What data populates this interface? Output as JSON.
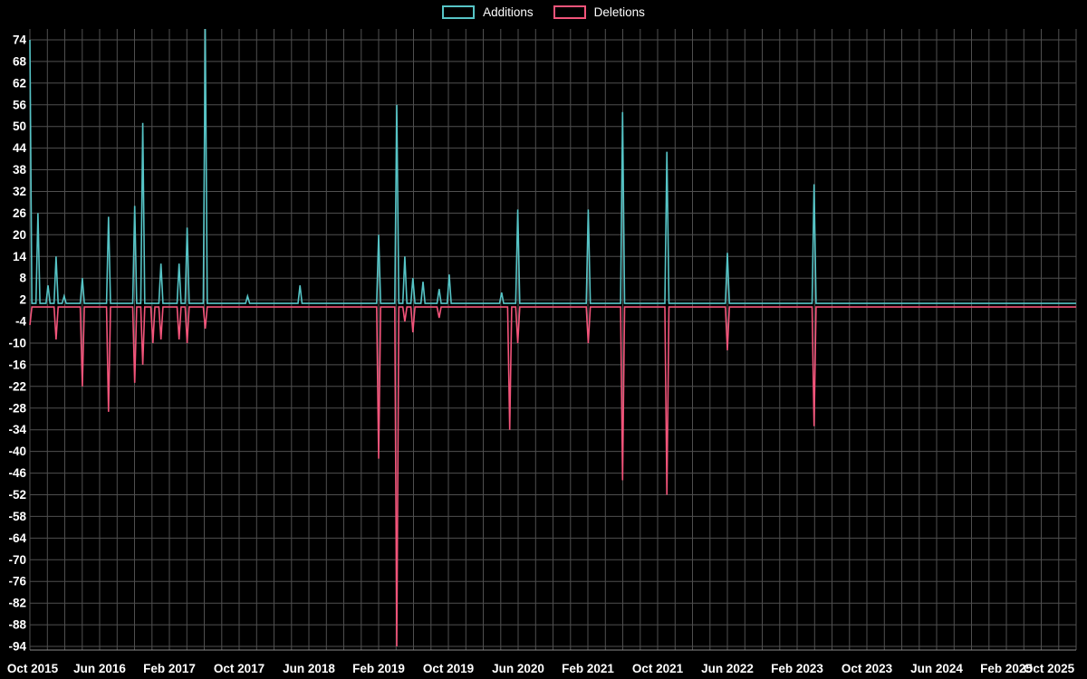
{
  "legend": {
    "items": [
      {
        "label": "Additions",
        "color": "#56c4c6"
      },
      {
        "label": "Deletions",
        "color": "#f2547a"
      }
    ]
  },
  "chart_data": {
    "type": "line",
    "title": "",
    "background": "#000000",
    "grid_color": "#4f4f4f",
    "axis_line_color": "#8a8a8a",
    "text_color": "#ffffff",
    "grid": true,
    "legend_position": "top-center",
    "n_months": 121,
    "x_start_label": "Oct 2015",
    "x_end_label": "Oct 2025",
    "x_tick_every_months": 8,
    "x_grid_every_months": 2,
    "x_tick_labels": [
      "Oct 2015",
      "Jun 2016",
      "Feb 2017",
      "Oct 2017",
      "Jun 2018",
      "Feb 2019",
      "Oct 2019",
      "Jun 2020",
      "Feb 2021",
      "Oct 2021",
      "Jun 2022",
      "Feb 2023",
      "Oct 2023",
      "Jun 2024",
      "Feb 2025",
      "Oct 2025"
    ],
    "y_ticks": [
      74,
      68,
      62,
      56,
      50,
      44,
      38,
      32,
      26,
      20,
      14,
      8,
      2,
      -4,
      -10,
      -16,
      -22,
      -28,
      -34,
      -40,
      -46,
      -52,
      -58,
      -64,
      -70,
      -76,
      -82,
      -88,
      -94
    ],
    "ylim": [
      -95,
      77
    ],
    "series": [
      {
        "name": "Additions",
        "color": "#56c4c6",
        "baseline": 1,
        "spikes": {
          "0": 74,
          "1": 26,
          "2": 6,
          "3": 14,
          "4": 3,
          "6": 8,
          "9": 25,
          "12": 28,
          "13": 51,
          "15": 12,
          "17": 12,
          "18": 22,
          "20": 77,
          "25": 3,
          "31": 6,
          "40": 20,
          "42": 56,
          "43": 14,
          "44": 8,
          "45": 7,
          "47": 5,
          "48": 9,
          "54": 4,
          "56": 27,
          "64": 27,
          "68": 54,
          "73": 43,
          "80": 15,
          "90": 34
        }
      },
      {
        "name": "Deletions",
        "color": "#f2547a",
        "baseline": 0,
        "spikes": {
          "0": -5,
          "3": -9,
          "6": -22,
          "9": -29,
          "12": -21,
          "13": -16,
          "14": -10,
          "15": -9,
          "17": -9,
          "18": -10,
          "20": -6,
          "40": -42,
          "42": -94,
          "43": -4,
          "44": -7,
          "47": -3,
          "55": -34,
          "56": -10,
          "64": -10,
          "68": -48,
          "73": -52,
          "80": -12,
          "90": -33
        }
      }
    ]
  }
}
